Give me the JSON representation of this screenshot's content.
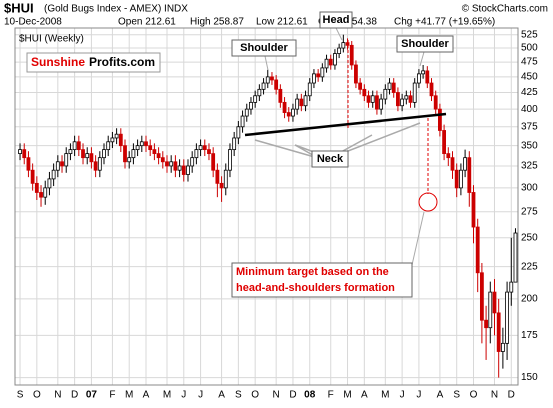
{
  "chart_data": {
    "type": "candlestick",
    "symbol": "$HUI",
    "name": "(Gold Bugs Index - AMEX) INDX",
    "date": "10-Dec-2008",
    "info": [
      "Open 212.61",
      "High 258.87",
      "Low 212.61",
      "Close 254.38",
      "Chg +41.77 (+19.65%)"
    ],
    "copyright": "© StockCharts.com",
    "legend": "$HUI (Weekly)",
    "logo": [
      "Sunshine",
      "Profits.com"
    ],
    "annotations": {
      "left_shoulder": "Shoulder",
      "head": "Head",
      "right_shoulder": "Shoulder",
      "neck": "Neck",
      "target": [
        "Minimum target based on the",
        "head-and-shoulders formation"
      ]
    },
    "log_scale": true,
    "grid": true,
    "up_color": "#000000",
    "down_color": "#cc0000",
    "xlim": [
      -1.2,
      118.6
    ],
    "xticks": [
      {
        "value": 0,
        "label": "S"
      },
      {
        "value": 4,
        "label": "O"
      },
      {
        "value": 9,
        "label": "N"
      },
      {
        "value": 13,
        "label": "D"
      },
      {
        "value": 17,
        "label": "07"
      },
      {
        "value": 22,
        "label": "F"
      },
      {
        "value": 26,
        "label": "M"
      },
      {
        "value": 30,
        "label": "A"
      },
      {
        "value": 35,
        "label": "M"
      },
      {
        "value": 39,
        "label": "J"
      },
      {
        "value": 43,
        "label": "J"
      },
      {
        "value": 48,
        "label": "A"
      },
      {
        "value": 52,
        "label": "S"
      },
      {
        "value": 56,
        "label": "O"
      },
      {
        "value": 61,
        "label": "N"
      },
      {
        "value": 65,
        "label": "D"
      },
      {
        "value": 69,
        "label": "08"
      },
      {
        "value": 74,
        "label": "F"
      },
      {
        "value": 78,
        "label": "M"
      },
      {
        "value": 82,
        "label": "A"
      },
      {
        "value": 87,
        "label": "M"
      },
      {
        "value": 91,
        "label": "J"
      },
      {
        "value": 95,
        "label": "J"
      },
      {
        "value": 100,
        "label": "A"
      },
      {
        "value": 104,
        "label": "S"
      },
      {
        "value": 108,
        "label": "O"
      },
      {
        "value": 113,
        "label": "N"
      },
      {
        "value": 117,
        "label": "D"
      }
    ],
    "ylim": [
      146,
      538
    ],
    "yticks": [
      150,
      175,
      200,
      225,
      250,
      275,
      300,
      325,
      350,
      375,
      400,
      425,
      450,
      475,
      500,
      525
    ],
    "open": [
      340,
      345,
      335,
      320,
      305,
      295,
      290,
      300,
      310,
      320,
      330,
      325,
      340,
      345,
      355,
      345,
      335,
      340,
      330,
      320,
      335,
      345,
      355,
      360,
      365,
      350,
      330,
      335,
      345,
      350,
      355,
      350,
      345,
      340,
      335,
      330,
      325,
      330,
      320,
      325,
      315,
      325,
      335,
      345,
      350,
      345,
      340,
      320,
      305,
      300,
      320,
      345,
      360,
      375,
      390,
      400,
      410,
      420,
      430,
      440,
      450,
      445,
      430,
      410,
      395,
      390,
      400,
      415,
      405,
      420,
      440,
      455,
      450,
      465,
      480,
      470,
      490,
      500,
      510,
      505,
      470,
      440,
      430,
      420,
      410,
      420,
      400,
      415,
      430,
      440,
      425,
      405,
      415,
      420,
      410,
      440,
      455,
      460,
      440,
      420,
      400,
      370,
      340,
      335,
      320,
      300,
      320,
      335,
      295,
      260,
      220,
      185,
      180,
      205,
      190,
      165,
      170,
      205,
      212.61
    ],
    "high": [
      353,
      353,
      343,
      328,
      313,
      303,
      308,
      318,
      328,
      338,
      338,
      348,
      353,
      363,
      363,
      353,
      348,
      348,
      338,
      343,
      353,
      363,
      368,
      373,
      373,
      358,
      343,
      353,
      358,
      363,
      363,
      358,
      353,
      348,
      343,
      338,
      338,
      338,
      333,
      333,
      333,
      343,
      353,
      358,
      358,
      353,
      348,
      328,
      313,
      328,
      353,
      368,
      383,
      398,
      408,
      418,
      428,
      438,
      448,
      462,
      458,
      453,
      438,
      418,
      403,
      408,
      423,
      423,
      428,
      448,
      463,
      463,
      473,
      488,
      488,
      498,
      508,
      525,
      518,
      513,
      478,
      448,
      438,
      428,
      428,
      428,
      423,
      438,
      448,
      448,
      433,
      423,
      428,
      428,
      448,
      463,
      470,
      468,
      448,
      428,
      408,
      378,
      348,
      343,
      328,
      328,
      345,
      343,
      303,
      268,
      228,
      195,
      213,
      215,
      200,
      180,
      213,
      250,
      258.87
    ],
    "low": [
      332,
      327,
      312,
      297,
      287,
      280,
      282,
      292,
      302,
      312,
      317,
      317,
      332,
      337,
      337,
      327,
      327,
      322,
      312,
      312,
      327,
      337,
      347,
      352,
      342,
      322,
      322,
      327,
      337,
      342,
      342,
      337,
      332,
      327,
      322,
      317,
      317,
      312,
      312,
      307,
      307,
      317,
      327,
      337,
      337,
      332,
      312,
      290,
      285,
      292,
      312,
      337,
      352,
      367,
      382,
      392,
      402,
      412,
      422,
      432,
      437,
      422,
      402,
      387,
      382,
      382,
      392,
      397,
      397,
      412,
      432,
      442,
      442,
      457,
      462,
      462,
      482,
      492,
      497,
      462,
      432,
      422,
      412,
      402,
      402,
      392,
      392,
      407,
      422,
      417,
      397,
      397,
      407,
      402,
      402,
      432,
      447,
      432,
      412,
      392,
      362,
      332,
      325,
      310,
      290,
      292,
      312,
      280,
      245,
      205,
      170,
      160,
      170,
      175,
      150,
      155,
      160,
      195,
      212.61
    ],
    "close": [
      345,
      335,
      320,
      305,
      295,
      290,
      300,
      310,
      320,
      330,
      325,
      340,
      345,
      355,
      345,
      335,
      340,
      330,
      320,
      335,
      345,
      355,
      360,
      365,
      350,
      330,
      335,
      345,
      350,
      355,
      350,
      345,
      340,
      335,
      330,
      325,
      330,
      320,
      325,
      315,
      325,
      335,
      345,
      350,
      345,
      340,
      320,
      305,
      300,
      320,
      345,
      360,
      375,
      390,
      400,
      410,
      420,
      430,
      440,
      450,
      445,
      430,
      410,
      395,
      390,
      400,
      415,
      405,
      420,
      440,
      455,
      450,
      465,
      480,
      470,
      490,
      500,
      510,
      505,
      470,
      440,
      430,
      420,
      410,
      420,
      400,
      415,
      430,
      440,
      425,
      405,
      415,
      420,
      410,
      440,
      455,
      460,
      440,
      420,
      400,
      370,
      340,
      335,
      320,
      300,
      320,
      335,
      295,
      260,
      220,
      185,
      180,
      205,
      190,
      165,
      170,
      205,
      212.61,
      254.38
    ]
  }
}
